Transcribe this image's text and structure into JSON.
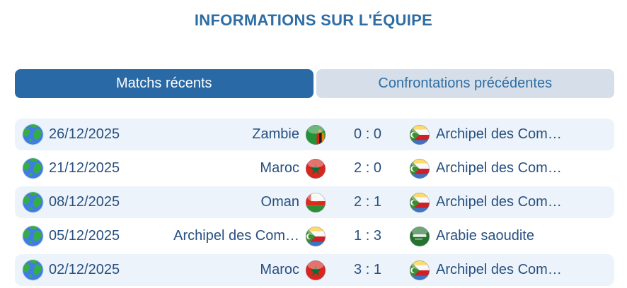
{
  "header": {
    "title": "INFORMATIONS SUR L'ÉQUIPE"
  },
  "tabs": [
    {
      "label": "Matchs récents",
      "active": true
    },
    {
      "label": "Confrontations précédentes",
      "active": false
    }
  ],
  "matches": [
    {
      "date": "26/12/2025",
      "home": {
        "name": "Zambie",
        "flag": "zambia-flag-icon"
      },
      "score": "0 : 0",
      "away": {
        "name": "Archipel des Com…",
        "flag": "comoros-flag-icon"
      }
    },
    {
      "date": "21/12/2025",
      "home": {
        "name": "Maroc",
        "flag": "morocco-flag-icon"
      },
      "score": "2 : 0",
      "away": {
        "name": "Archipel des Com…",
        "flag": "comoros-flag-icon"
      }
    },
    {
      "date": "08/12/2025",
      "home": {
        "name": "Oman",
        "flag": "oman-flag-icon"
      },
      "score": "2 : 1",
      "away": {
        "name": "Archipel des Com…",
        "flag": "comoros-flag-icon"
      }
    },
    {
      "date": "05/12/2025",
      "home": {
        "name": "Archipel des Com…",
        "flag": "comoros-flag-icon"
      },
      "score": "1 : 3",
      "away": {
        "name": "Arabie saoudite",
        "flag": "saudi-arabia-flag-icon"
      }
    },
    {
      "date": "02/12/2025",
      "home": {
        "name": "Maroc",
        "flag": "morocco-flag-icon"
      },
      "score": "3 : 1",
      "away": {
        "name": "Archipel des Com…",
        "flag": "comoros-flag-icon"
      }
    }
  ],
  "icons": {
    "row_leading": "globe-icon"
  },
  "colors": {
    "accent": "#2e6da4",
    "tab_active_bg": "#2969a6",
    "tab_active_text": "#ffffff",
    "tab_inactive_bg": "#d6dfe9",
    "row_alt_bg": "#edf3fa",
    "row_text": "#275080"
  }
}
